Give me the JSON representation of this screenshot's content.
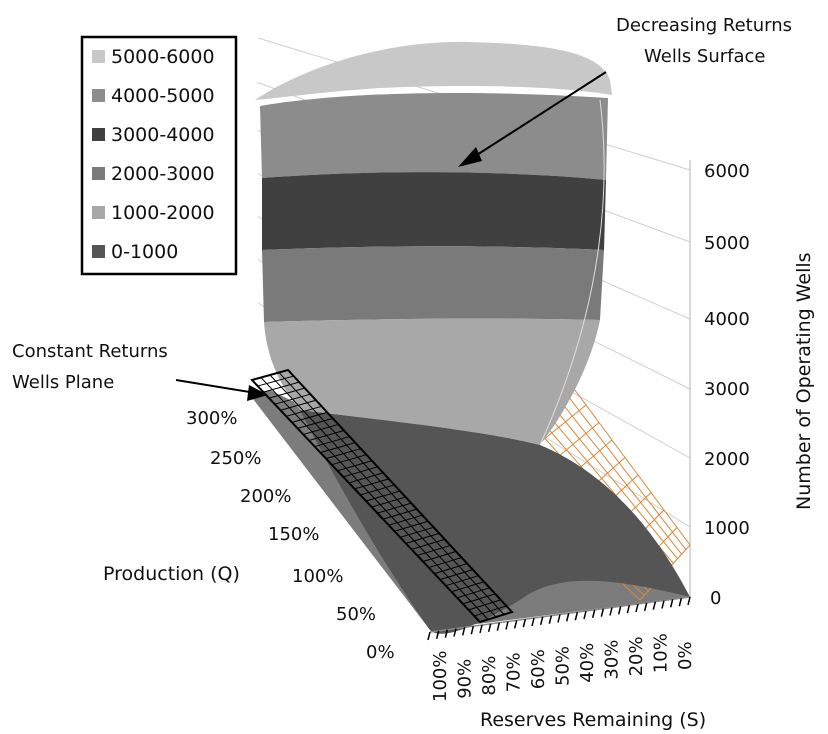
{
  "chart_data": {
    "type": "surface",
    "zlabel": "Number of Operating Wells",
    "xlabel": "Reserves Remaining (S)",
    "ylabel": "Production (Q)",
    "z_ticks": [
      "0",
      "1000",
      "2000",
      "3000",
      "4000",
      "5000",
      "6000"
    ],
    "zlim": [
      0,
      6000
    ],
    "x_ticks": [
      "100%",
      "90%",
      "80%",
      "70%",
      "60%",
      "50%",
      "40%",
      "30%",
      "20%",
      "10%",
      "0%"
    ],
    "y_ticks": [
      "0%",
      "50%",
      "100%",
      "150%",
      "200%",
      "250%",
      "300%"
    ],
    "legend": {
      "position": "top-left",
      "entries": [
        {
          "label": "5000-6000",
          "color": "#c8c8c8"
        },
        {
          "label": "4000-5000",
          "color": "#8c8c8c"
        },
        {
          "label": "3000-4000",
          "color": "#404040"
        },
        {
          "label": "2000-3000",
          "color": "#7a7a7a"
        },
        {
          "label": "1000-2000",
          "color": "#a8a8a8"
        },
        {
          "label": "0-1000",
          "color": "#555555"
        }
      ]
    },
    "annotations": {
      "decreasing": [
        "Decreasing Returns",
        "Wells Surface"
      ],
      "constant": [
        "Constant Returns",
        "Wells Plane"
      ]
    },
    "series": [
      {
        "name": "Decreasing Returns Wells Surface",
        "peak_value": 6000
      },
      {
        "name": "Constant Returns Wells Plane",
        "max_value": 1000
      }
    ]
  }
}
